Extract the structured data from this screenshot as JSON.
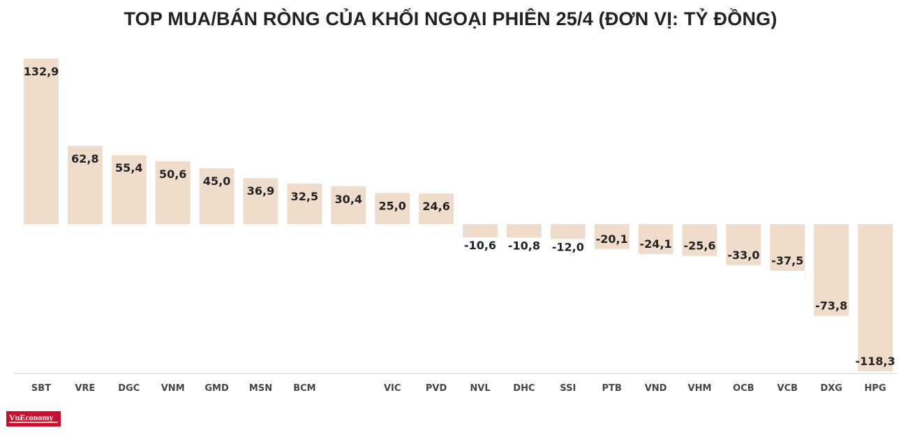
{
  "chart_data": {
    "type": "bar",
    "title": "TOP MUA/BÁN RÒNG CỦA KHỐI NGOẠI PHIÊN 25/4 (ĐƠN VỊ: TỶ ĐỒNG)",
    "xlabel": "",
    "ylabel": "",
    "ylim": [
      -118.3,
      132.9
    ],
    "categories": [
      "SBT",
      "VRE",
      "DGC",
      "VNM",
      "GMD",
      "MSN",
      "BCM",
      "",
      "VIC",
      "PVD",
      "NVL",
      "DHC",
      "SSI",
      "PTB",
      "VND",
      "VHM",
      "OCB",
      "VCB",
      "DXG",
      "HPG"
    ],
    "values": [
      132.9,
      62.8,
      55.4,
      50.6,
      45.0,
      36.9,
      32.5,
      30.4,
      25.0,
      24.6,
      -10.6,
      -10.8,
      -12.0,
      -20.1,
      -24.1,
      -25.6,
      -33.0,
      -37.5,
      -73.8,
      -118.3
    ],
    "labels": [
      "132,9",
      "62,8",
      "55,4",
      "50,6",
      "45,0",
      "36,9",
      "32,5",
      "30,4",
      "25,0",
      "24,6",
      "-10,6",
      "-10,8",
      "-12,0",
      "-20,1",
      "-24,1",
      "-25,6",
      "-33,0",
      "-37,5",
      "-73,8",
      "-118,3"
    ],
    "colors": {
      "bar": "#f0dccb",
      "text": "#222222",
      "tick": "#444444"
    },
    "grid": false,
    "legend": "none"
  },
  "branding": {
    "logo_text": "VnEconomy"
  }
}
